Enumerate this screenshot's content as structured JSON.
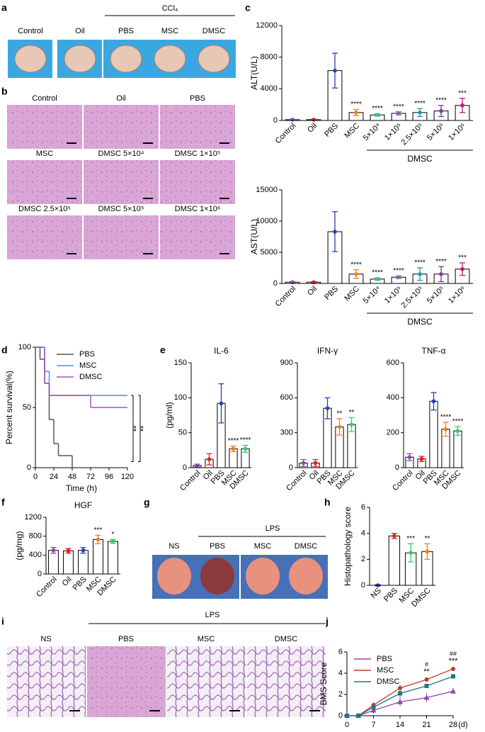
{
  "panel_labels": [
    "a",
    "b",
    "c",
    "d",
    "e",
    "f",
    "g",
    "h",
    "i",
    "j"
  ],
  "panel_a": {
    "group": "CCl₄",
    "captions": [
      "Control",
      "Oil",
      "PBS",
      "MSC",
      "DMSC"
    ]
  },
  "panel_b": {
    "captions": [
      "Control",
      "Oil",
      "PBS",
      "MSC",
      "DMSC 5×10⁴",
      "DMSC 1×10⁵",
      "DMSC 2.5×10⁵",
      "DMSC 5×10⁵",
      "DMSC 1×10⁶"
    ]
  },
  "panel_g": {
    "group": "LPS",
    "captions": [
      "NS",
      "PBS",
      "MSC",
      "DMSC"
    ]
  },
  "panel_i": {
    "group": "LPS",
    "captions": [
      "NS",
      "PBS",
      "MSC",
      "DMSC"
    ]
  },
  "chart_data": [
    {
      "type": "bar",
      "ylabel": "ALT(U/L)",
      "group_label": "DMSC",
      "categories": [
        "Control",
        "Oil",
        "PBS",
        "MSC",
        "5×10⁴",
        "1×10⁵",
        "2.5×10⁵",
        "5×10⁵",
        "1×10⁶"
      ],
      "values": [
        100,
        100,
        6300,
        1000,
        700,
        900,
        1000,
        1200,
        1900
      ],
      "errors": [
        50,
        50,
        2200,
        400,
        150,
        200,
        500,
        700,
        900
      ],
      "significance": [
        null,
        null,
        null,
        "****",
        "****",
        "****",
        "****",
        "****",
        "***"
      ],
      "colors": [
        "#8e44ad",
        "#e02020",
        "#2a3fb5",
        "#f08020",
        "#2ecc71",
        "#9b59b6",
        "#1aa0a0",
        "#7d3c98",
        "#c0187a"
      ],
      "ylim": [
        0,
        12000
      ],
      "yticks": [
        0,
        4000,
        8000,
        12000
      ]
    },
    {
      "type": "bar",
      "ylabel": "AST(U/L)",
      "group_label": "DMSC",
      "categories": [
        "Control",
        "Oil",
        "PBS",
        "MSC",
        "5×10⁴",
        "1×10⁵",
        "2.5×10⁵",
        "5×10⁵",
        "1×10⁶"
      ],
      "values": [
        200,
        200,
        8300,
        1500,
        700,
        1000,
        1500,
        1500,
        2300
      ],
      "errors": [
        80,
        80,
        3200,
        700,
        200,
        200,
        1000,
        1200,
        1000
      ],
      "significance": [
        null,
        null,
        null,
        "****",
        "****",
        "****",
        "****",
        "****",
        "***"
      ],
      "colors": [
        "#8e44ad",
        "#e02020",
        "#2a3fb5",
        "#f08020",
        "#2ecc71",
        "#9b59b6",
        "#1aa0a0",
        "#7d3c98",
        "#c0187a"
      ],
      "ylim": [
        0,
        15000
      ],
      "yticks": [
        0,
        5000,
        10000,
        15000
      ]
    },
    {
      "type": "line",
      "step": true,
      "ylabel": "Percent survival(%)",
      "xlabel": "Time (h)",
      "x": [
        0,
        6,
        12,
        18,
        24,
        30,
        48,
        72,
        120
      ],
      "series": [
        {
          "name": "PBS",
          "color": "#555555",
          "values": [
            100,
            90,
            70,
            40,
            20,
            10,
            0,
            null,
            null
          ]
        },
        {
          "name": "MSC",
          "color": "#4a90d9",
          "values": [
            100,
            100,
            80,
            60,
            60,
            60,
            60,
            60,
            60
          ]
        },
        {
          "name": "DMSC",
          "color": "#9b59b6",
          "values": [
            100,
            100,
            70,
            60,
            60,
            60,
            60,
            50,
            50
          ]
        }
      ],
      "annotations": [
        "**",
        "**"
      ],
      "xlim": [
        0,
        120
      ],
      "xticks": [
        0,
        24,
        48,
        72,
        96,
        120
      ],
      "ylim": [
        0,
        100
      ],
      "yticks": [
        0,
        50,
        100
      ]
    },
    {
      "type": "bar",
      "title": "IL-6",
      "ylabel": "(pg/ml)",
      "categories": [
        "Control",
        "Oil",
        "PBS",
        "MSC",
        "DMSC"
      ],
      "values": [
        3,
        12,
        92,
        27,
        27
      ],
      "errors": [
        2,
        8,
        28,
        4,
        5
      ],
      "significance": [
        null,
        null,
        null,
        "****",
        "****"
      ],
      "colors": [
        "#8e44ad",
        "#e02020",
        "#2a3fb5",
        "#f08020",
        "#2ecc71"
      ],
      "ylim": [
        0,
        150
      ],
      "yticks": [
        0,
        50,
        100,
        150
      ]
    },
    {
      "type": "bar",
      "title": "IFN-γ",
      "categories": [
        "Control",
        "Oil",
        "PBS",
        "MSC",
        "DMSC"
      ],
      "values": [
        40,
        40,
        510,
        350,
        370
      ],
      "errors": [
        30,
        30,
        90,
        70,
        60
      ],
      "significance": [
        null,
        null,
        null,
        "**",
        "**"
      ],
      "colors": [
        "#8e44ad",
        "#e02020",
        "#2a3fb5",
        "#f08020",
        "#2ecc71"
      ],
      "ylim": [
        0,
        900
      ],
      "yticks": [
        0,
        300,
        600,
        900
      ]
    },
    {
      "type": "bar",
      "title": "TNF-α",
      "categories": [
        "Control",
        "Oil",
        "PBS",
        "MSC",
        "DMSC"
      ],
      "values": [
        60,
        50,
        380,
        220,
        210
      ],
      "errors": [
        20,
        15,
        50,
        40,
        25
      ],
      "significance": [
        null,
        null,
        null,
        "****",
        "****"
      ],
      "colors": [
        "#8e44ad",
        "#e02020",
        "#2a3fb5",
        "#f08020",
        "#2ecc71"
      ],
      "ylim": [
        0,
        600
      ],
      "yticks": [
        0,
        200,
        400,
        600
      ]
    },
    {
      "type": "bar",
      "title": "HGF",
      "ylabel": "(pg/mg)",
      "categories": [
        "Control",
        "Oil",
        "PBS",
        "MSC",
        "DMSC"
      ],
      "values": [
        500,
        490,
        500,
        730,
        690
      ],
      "errors": [
        60,
        50,
        60,
        90,
        40
      ],
      "significance": [
        null,
        null,
        null,
        "***",
        "*"
      ],
      "colors": [
        "#8e44ad",
        "#e02020",
        "#2a3fb5",
        "#f08020",
        "#2ecc71"
      ],
      "ylim": [
        0,
        1200
      ],
      "yticks": [
        0,
        400,
        800,
        1200
      ]
    },
    {
      "type": "bar",
      "ylabel": "Histopathology score",
      "categories": [
        "NS",
        "PBS",
        "MSC",
        "DMSC"
      ],
      "values": [
        0,
        3.8,
        2.5,
        2.6
      ],
      "errors": [
        0.05,
        0.2,
        0.7,
        0.6
      ],
      "significance": [
        null,
        null,
        "***",
        "**"
      ],
      "colors": [
        "#2a3fb5",
        "#e02020",
        "#2ecc71",
        "#f08020"
      ],
      "ylim": [
        0,
        6
      ],
      "yticks": [
        0,
        2,
        4,
        6
      ]
    },
    {
      "type": "line",
      "ylabel": "BMS Score",
      "xunit": "(d)",
      "x": [
        0,
        3,
        7,
        14,
        21,
        28
      ],
      "series": [
        {
          "name": "PBS",
          "color": "#8e44ad",
          "marker": "triangle",
          "values": [
            0,
            0,
            0.5,
            1.3,
            1.7,
            2.3
          ],
          "errors": [
            0,
            0,
            0.3,
            0.4,
            0.4,
            0.3
          ]
        },
        {
          "name": "MSC",
          "color": "#c0392b",
          "marker": "circle",
          "values": [
            0,
            0,
            1,
            2.6,
            3.4,
            4.4
          ],
          "errors": [
            0,
            0,
            0.3,
            0.3,
            0.2,
            0.2
          ]
        },
        {
          "name": "DMSC",
          "color": "#1a7a80",
          "marker": "square",
          "values": [
            0,
            0,
            0.8,
            2.1,
            2.8,
            3.7
          ],
          "errors": [
            0,
            0,
            0.3,
            0.4,
            0.2,
            0.2
          ]
        }
      ],
      "significance_stars": [
        null,
        null,
        null,
        null,
        "**",
        "***"
      ],
      "significance_hash": [
        null,
        null,
        null,
        null,
        "#",
        "##"
      ],
      "xlim": [
        0,
        28
      ],
      "xticks": [
        0,
        7,
        14,
        21,
        28
      ],
      "ylim": [
        0,
        6
      ],
      "yticks": [
        0,
        2,
        4,
        6
      ]
    }
  ]
}
